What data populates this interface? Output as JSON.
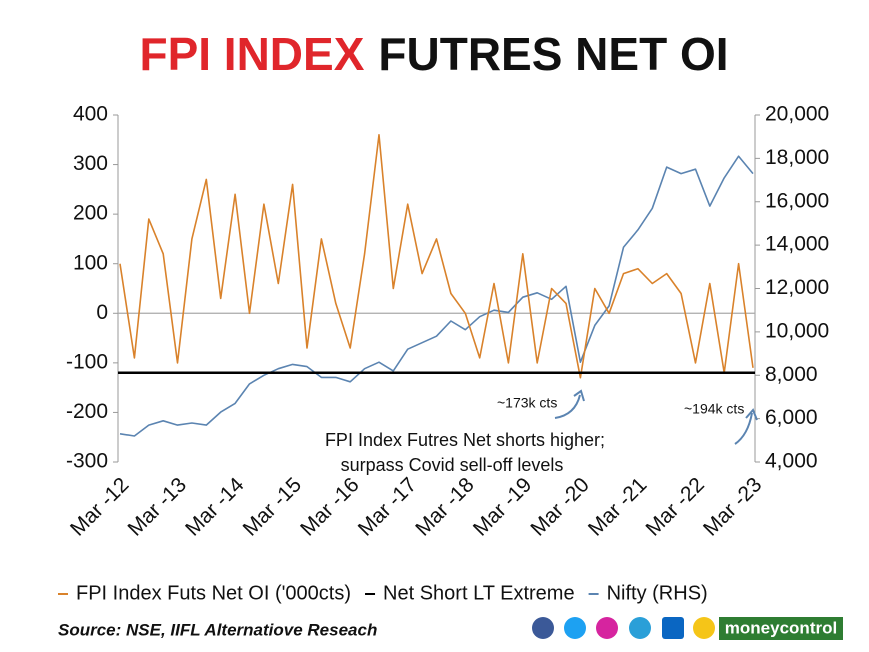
{
  "chart_data": {
    "type": "line",
    "title": {
      "highlight": "FPI INDEX",
      "rest": "FUTRES NET OI"
    },
    "categories": [
      "Mar -12",
      null,
      null,
      null,
      "Mar -13",
      null,
      null,
      null,
      "Mar -14",
      null,
      null,
      null,
      "Mar -15",
      null,
      null,
      null,
      "Mar -16",
      null,
      null,
      null,
      "Mar -17",
      null,
      null,
      null,
      "Mar -18",
      null,
      null,
      null,
      "Mar -19",
      null,
      null,
      null,
      "Mar -20",
      null,
      null,
      null,
      "Mar -21",
      null,
      null,
      null,
      "Mar -22",
      null,
      null,
      null,
      "Mar -23"
    ],
    "series": [
      {
        "name": "FPI Index Futs Net OI ('000cts)",
        "color": "#d9822b",
        "values": [
          100,
          -90,
          190,
          120,
          -100,
          150,
          270,
          30,
          240,
          0,
          220,
          60,
          260,
          -70,
          150,
          20,
          -70,
          120,
          360,
          50,
          220,
          80,
          150,
          40,
          0,
          -90,
          60,
          -100,
          120,
          -100,
          50,
          20,
          -130,
          50,
          0,
          80,
          90,
          60,
          80,
          40,
          -100,
          60,
          -120,
          100,
          -110
        ]
      },
      {
        "name": "Nifty (RHS)",
        "color": "#5b84b1",
        "axis": "y2",
        "values": [
          5300,
          5200,
          5700,
          5900,
          5700,
          5800,
          5700,
          6300,
          6700,
          7600,
          8000,
          8300,
          8500,
          8400,
          7900,
          7900,
          7700,
          8300,
          8600,
          8200,
          9200,
          9500,
          9800,
          10500,
          10100,
          10700,
          11000,
          10900,
          11600,
          11800,
          11500,
          12100,
          8600,
          10300,
          11200,
          13900,
          14700,
          15700,
          17600,
          17300,
          17500,
          15800,
          17100,
          18100,
          17300
        ]
      }
    ],
    "reference_line": {
      "name": "Net Short LT Extreme",
      "value": -120,
      "color": "#000000"
    },
    "ylim": [
      -300,
      400
    ],
    "yticks": [
      -300,
      -200,
      -100,
      0,
      100,
      200,
      300,
      400
    ],
    "y2lim": [
      4000,
      20000
    ],
    "y2ticks": [
      {
        "value": 4000,
        "label": "4,000"
      },
      {
        "value": 6000,
        "label": "6,000"
      },
      {
        "value": 8000,
        "label": "8,000"
      },
      {
        "value": 10000,
        "label": "10,000"
      },
      {
        "value": 12000,
        "label": "12,000"
      },
      {
        "value": 14000,
        "label": "14,000"
      },
      {
        "value": 16000,
        "label": "16,000"
      },
      {
        "value": 18000,
        "label": "18,000"
      },
      {
        "value": 20000,
        "label": "20,000"
      }
    ],
    "annotations": [
      "~173k cts",
      "~194k cts",
      "FPI Index Futres Net shorts higher;",
      "surpass Covid sell-off levels"
    ],
    "source": "Source: NSE, IIFL Alternatiove Reseach",
    "brand": "moneycontrol"
  }
}
